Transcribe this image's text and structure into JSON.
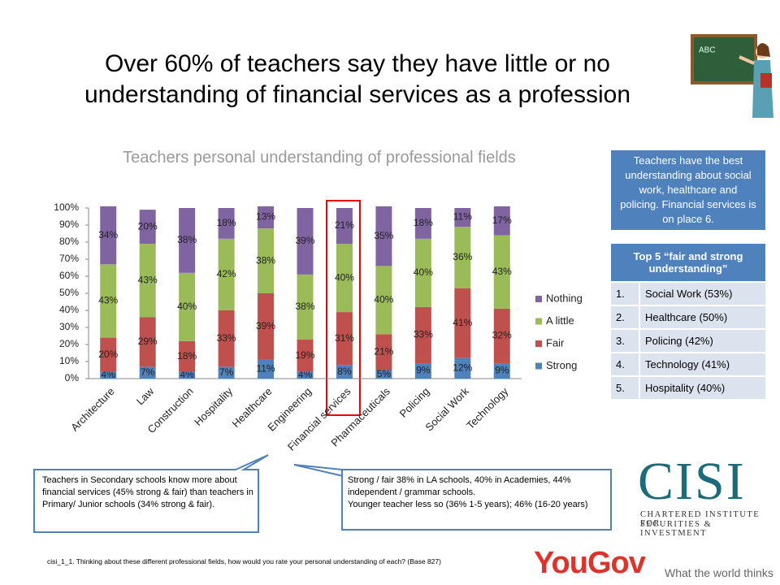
{
  "title": [
    "Over 60% of teachers say they have little or no",
    "understanding of financial services as a profession"
  ],
  "chart_data": {
    "type": "stacked_bar",
    "title": "Teachers personal understanding of professional fields",
    "categories": [
      "Architecture",
      "Law",
      "Construction",
      "Hospitality",
      "Healthcare",
      "Engineering",
      "Financial services",
      "Pharmaceuticals",
      "Policing",
      "Social Work",
      "Technology"
    ],
    "series": [
      {
        "name": "Strong",
        "color": "#4f81bd",
        "values": [
          4,
          7,
          4,
          7,
          11,
          4,
          8,
          5,
          9,
          12,
          9
        ],
        "value_labels": [
          "4%",
          "7%",
          "4%",
          "7%",
          "11%",
          "4%",
          "8%",
          "5%",
          "9%",
          "12%",
          "9%"
        ]
      },
      {
        "name": "Fair",
        "color": "#c0504d",
        "values": [
          20,
          29,
          18,
          33,
          39,
          19,
          31,
          21,
          33,
          41,
          32
        ],
        "value_labels": [
          "20%",
          "29%",
          "18%",
          "33%",
          "39%",
          "19%",
          "31%",
          "21%",
          "33%",
          "41%",
          "32%"
        ]
      },
      {
        "name": "A little",
        "color": "#9bbb59",
        "values": [
          43,
          43,
          40,
          42,
          38,
          38,
          40,
          40,
          40,
          36,
          43
        ],
        "value_labels": [
          "43%",
          "43%",
          "40%",
          "42%",
          "38%",
          "38%",
          "40%",
          "40%",
          "40%",
          "36%",
          "43%"
        ]
      },
      {
        "name": "Nothing",
        "color": "#8064a2",
        "values": [
          34,
          20,
          38,
          18,
          13,
          39,
          21,
          35,
          18,
          11,
          17
        ],
        "value_labels": [
          "34%",
          "20%",
          "38%",
          "18%",
          "13%",
          "39%",
          "21%",
          "35%",
          "18%",
          "11%",
          "17%"
        ]
      }
    ],
    "ylim": [
      0,
      100
    ],
    "yticks": [
      {
        "value": 0,
        "label": "0%"
      },
      {
        "value": 10,
        "label": "10%"
      },
      {
        "value": 20,
        "label": "20%"
      },
      {
        "value": 30,
        "label": "30%"
      },
      {
        "value": 40,
        "label": "40%"
      },
      {
        "value": 50,
        "label": "50%"
      },
      {
        "value": 60,
        "label": "60%"
      },
      {
        "value": 70,
        "label": "70%"
      },
      {
        "value": 80,
        "label": "80%"
      },
      {
        "value": 90,
        "label": "90%"
      },
      {
        "value": 100,
        "label": "100%"
      }
    ],
    "legend": "right"
  },
  "info_box": "Teachers have the best understanding about social work, healthcare and policing. Financial services is on place 6.",
  "top5": {
    "title": "Top 5 “fair and strong understanding”",
    "rows": [
      [
        "1.",
        "Social Work  (53%)"
      ],
      [
        "2.",
        "Healthcare (50%)"
      ],
      [
        "3.",
        "Policing (42%)"
      ],
      [
        "4.",
        "Technology (41%)"
      ],
      [
        "5.",
        "Hospitality (40%)"
      ]
    ]
  },
  "notes": [
    "Teachers in Secondary schools know more about financial services (45% strong & fair) than teachers in Primary/ Junior schools (34% strong & fair).",
    [
      "Strong / fair 38% in LA schools, 40% in Academies, 44% independent / grammar schools.",
      "Younger teacher  less so (36% 1-5 years); 46% (16-20 years)"
    ]
  ],
  "footnote": "cisi_1_1. Thinking about these different professional fields, how would you rate your personal understanding of each? (Base 827)",
  "logos": {
    "cisi": "CISI",
    "cisi_line1": "CHARTERED INSTITUTE FOR",
    "cisi_line2": "SECURITIES & INVESTMENT",
    "yougov": "YouGov",
    "tagline": "What the world thinks"
  }
}
